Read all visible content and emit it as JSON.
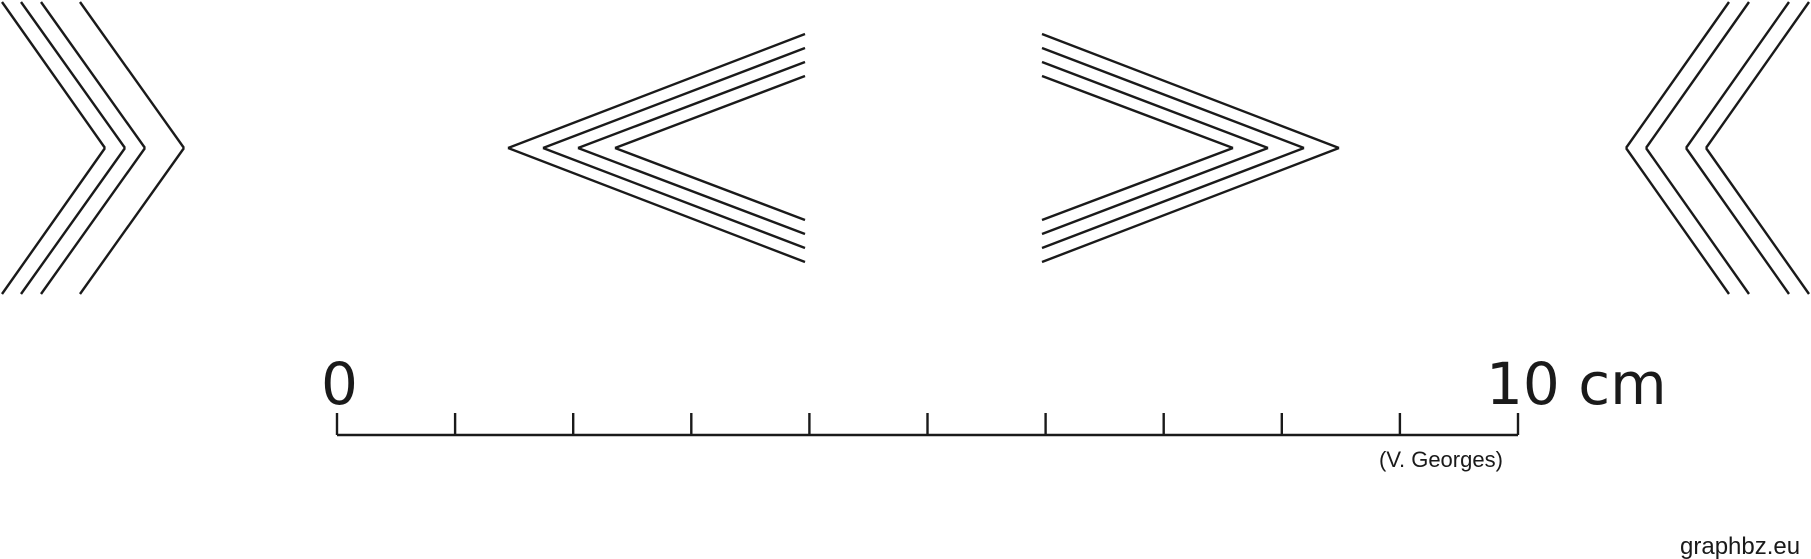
{
  "scale": {
    "start_label": "0",
    "end_label": "10 cm",
    "segments": 10,
    "credit": "(V. Georges)"
  },
  "chevrons": [
    {
      "id": "left-edge",
      "direction": "right",
      "stripes": 4
    },
    {
      "id": "center-left",
      "direction": "left",
      "stripes": 4
    },
    {
      "id": "center-right",
      "direction": "right",
      "stripes": 4
    },
    {
      "id": "right-edge",
      "direction": "left",
      "stripes": 4
    }
  ],
  "footer": {
    "site": "graphbz.eu"
  },
  "colors": {
    "ink": "#1a1a1a",
    "background": "#ffffff"
  }
}
